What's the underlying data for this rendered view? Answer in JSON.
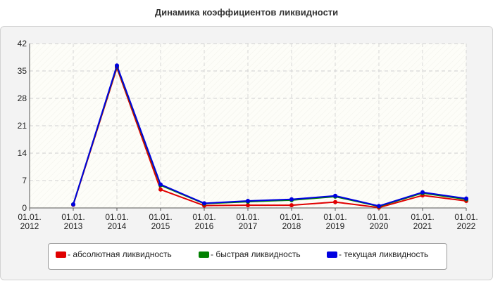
{
  "chart_data": {
    "type": "line",
    "title": "Динамика коэффициентов ликвидности",
    "x_labels": [
      [
        "01.01.",
        "2012"
      ],
      [
        "01.01.",
        "2013"
      ],
      [
        "01.01.",
        "2014"
      ],
      [
        "01.01.",
        "2015"
      ],
      [
        "01.01.",
        "2016"
      ],
      [
        "01.01.",
        "2017"
      ],
      [
        "01.01.",
        "2018"
      ],
      [
        "01.01.",
        "2019"
      ],
      [
        "01.01.",
        "2020"
      ],
      [
        "01.01.",
        "2021"
      ],
      [
        "01.01.",
        "2022"
      ]
    ],
    "x": [
      "01.01.2012",
      "01.01.2013",
      "01.01.2014",
      "01.01.2015",
      "01.01.2016",
      "01.01.2017",
      "01.01.2018",
      "01.01.2019",
      "01.01.2020",
      "01.01.2021",
      "01.01.2022"
    ],
    "ylim": [
      0,
      42
    ],
    "yticks": [
      0,
      7,
      14,
      21,
      28,
      35,
      42
    ],
    "grid": true,
    "legend_position": "bottom",
    "series": [
      {
        "name": "- абсолютная ликвидность",
        "color": "#e00000",
        "values": [
          null,
          0.8,
          35.8,
          4.7,
          0.6,
          0.7,
          0.7,
          1.5,
          0.1,
          3.2,
          1.8
        ]
      },
      {
        "name": "- быстрая ликвидность",
        "color": "#008000",
        "values": [
          null,
          0.9,
          36.2,
          5.8,
          1.1,
          1.6,
          2.0,
          2.9,
          0.4,
          3.8,
          2.2
        ]
      },
      {
        "name": "- текущая ликвидность",
        "color": "#0000e0",
        "values": [
          null,
          0.9,
          36.4,
          6.0,
          1.2,
          1.8,
          2.2,
          3.1,
          0.5,
          4.0,
          2.4
        ]
      }
    ]
  }
}
